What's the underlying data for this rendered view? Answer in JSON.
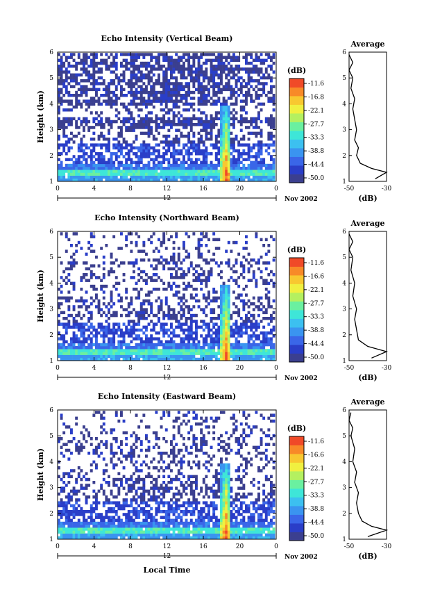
{
  "chart_data": [
    {
      "type": "heatmap",
      "title": "Echo Intensity (Vertical Beam)",
      "ylabel": "Height (km)",
      "xlabel": "",
      "xticks": [
        "0",
        "4",
        "8",
        "12",
        "16",
        "20",
        "0"
      ],
      "yticks": [
        "1",
        "2",
        "3",
        "4",
        "5",
        "6"
      ],
      "xlim": [
        0,
        24
      ],
      "ylim": [
        1,
        6
      ],
      "date_marker": "12",
      "date_label": "Nov 2002",
      "colorbar": {
        "label": "(dB)",
        "ticks": [
          "-11.6",
          "-16.8",
          "-22.1",
          "-27.7",
          "-33.3",
          "-38.8",
          "-44.4",
          "-50.0"
        ]
      },
      "average": {
        "title": "Average",
        "xlabel": "(dB)",
        "xticks": [
          "-50",
          "-30"
        ],
        "yticks": [
          "1",
          "2",
          "3",
          "4",
          "5",
          "6"
        ],
        "profile": [
          [
            -36,
            1.1
          ],
          [
            -30,
            1.35
          ],
          [
            -38,
            1.5
          ],
          [
            -44,
            1.7
          ],
          [
            -46,
            2.0
          ],
          [
            -45,
            2.3
          ],
          [
            -47,
            2.6
          ],
          [
            -46,
            3.0
          ],
          [
            -47,
            3.4
          ],
          [
            -48,
            3.8
          ],
          [
            -47,
            4.2
          ],
          [
            -49,
            4.6
          ],
          [
            -48,
            5.0
          ],
          [
            -50,
            5.3
          ],
          [
            -48,
            5.6
          ],
          [
            -50,
            5.9
          ]
        ]
      }
    },
    {
      "type": "heatmap",
      "title": "Echo Intensity (Northward Beam)",
      "ylabel": "Height (km)",
      "xlabel": "",
      "xticks": [
        "0",
        "4",
        "8",
        "12",
        "16",
        "20",
        "0"
      ],
      "yticks": [
        "1",
        "2",
        "3",
        "4",
        "5",
        "6"
      ],
      "xlim": [
        0,
        24
      ],
      "ylim": [
        1,
        6
      ],
      "date_marker": "12",
      "date_label": "Nov 2002",
      "colorbar": {
        "label": "(dB)",
        "ticks": [
          "-11.6",
          "-16.6",
          "-22.1",
          "-27.7",
          "-33.3",
          "-38.8",
          "-44.4",
          "-50.0"
        ]
      },
      "average": {
        "title": "Average",
        "xlabel": "(dB)",
        "xticks": [
          "-50",
          "-30"
        ],
        "yticks": [
          "1",
          "2",
          "3",
          "4",
          "5",
          "6"
        ],
        "profile": [
          [
            -38,
            1.1
          ],
          [
            -30,
            1.35
          ],
          [
            -40,
            1.55
          ],
          [
            -45,
            1.8
          ],
          [
            -46,
            2.2
          ],
          [
            -47,
            2.6
          ],
          [
            -46,
            3.0
          ],
          [
            -48,
            3.5
          ],
          [
            -47,
            4.0
          ],
          [
            -49,
            4.5
          ],
          [
            -48,
            5.0
          ],
          [
            -50,
            5.3
          ],
          [
            -48,
            5.6
          ],
          [
            -50,
            5.9
          ]
        ]
      }
    },
    {
      "type": "heatmap",
      "title": "Echo Intensity (Eastward Beam)",
      "ylabel": "Height (km)",
      "xlabel": "Local Time",
      "xticks": [
        "0",
        "4",
        "8",
        "12",
        "16",
        "20",
        "0"
      ],
      "yticks": [
        "1",
        "2",
        "3",
        "4",
        "5",
        "6"
      ],
      "xlim": [
        0,
        24
      ],
      "ylim": [
        1,
        6
      ],
      "date_marker": "12",
      "date_label": "Nov 2002",
      "colorbar": {
        "label": "(dB)",
        "ticks": [
          "-11.6",
          "-16.6",
          "-22.1",
          "-27.7",
          "-33.3",
          "-38.8",
          "-44.4",
          "-50.0"
        ]
      },
      "average": {
        "title": "Average",
        "xlabel": "(dB)",
        "xticks": [
          "-50",
          "-30"
        ],
        "yticks": [
          "1",
          "2",
          "3",
          "4",
          "5",
          "6"
        ],
        "profile": [
          [
            -40,
            1.1
          ],
          [
            -30,
            1.35
          ],
          [
            -38,
            1.5
          ],
          [
            -43,
            1.7
          ],
          [
            -45,
            2.0
          ],
          [
            -46,
            2.4
          ],
          [
            -45,
            2.8
          ],
          [
            -47,
            3.2
          ],
          [
            -46,
            3.6
          ],
          [
            -48,
            4.0
          ],
          [
            -47,
            4.5
          ],
          [
            -49,
            5.0
          ],
          [
            -48,
            5.3
          ],
          [
            -50,
            5.6
          ],
          [
            -49,
            5.9
          ]
        ]
      }
    }
  ]
}
